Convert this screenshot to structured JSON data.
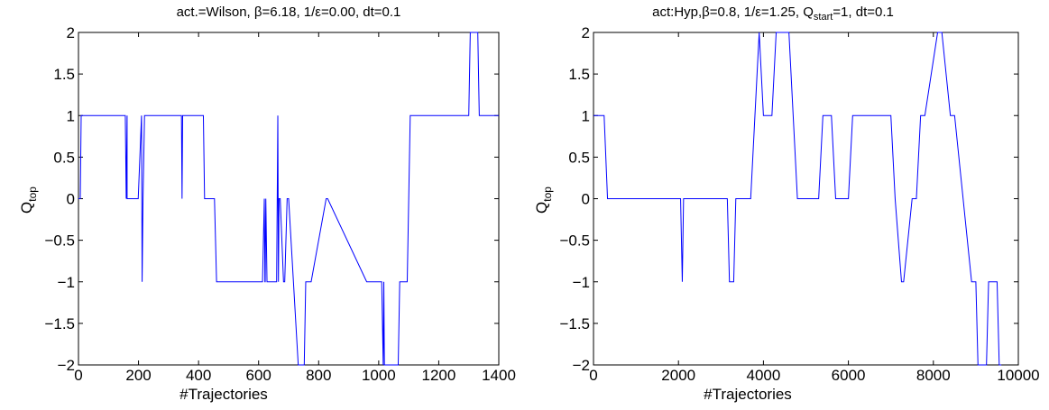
{
  "chart_data": [
    {
      "type": "line",
      "title": "act.=Wilson, β=6.18, 1/ε=0.00, dt=0.1",
      "xlabel": "#Trajectories",
      "ylabel_main": "Q",
      "ylabel_sub": "top",
      "xlim": [
        0,
        1400
      ],
      "ylim": [
        -2,
        2
      ],
      "xticks": [
        0,
        200,
        400,
        600,
        800,
        1000,
        1200,
        1400
      ],
      "xtick_labels": [
        "0",
        "200",
        "400",
        "600",
        "800",
        "1000",
        "1200",
        "1400"
      ],
      "yticks": [
        -2,
        -1.5,
        -1,
        -0.5,
        0,
        0.5,
        1,
        1.5,
        2
      ],
      "ytick_labels": [
        "−2",
        "−1.5",
        "−1",
        "−0.5",
        "0",
        "0.5",
        "1",
        "1.5",
        "2"
      ],
      "grid": false,
      "line_color": "#0000ff",
      "series": [
        {
          "x": [
            0,
            6,
            9,
            156,
            159,
            162,
            162,
            166,
            199,
            210,
            212,
            215,
            220,
            223,
            343,
            345,
            347,
            416,
            420,
            453,
            460,
            613,
            619,
            621,
            622,
            624,
            628,
            660,
            664,
            666,
            668,
            672,
            683,
            687,
            695,
            700,
            732,
            736,
            752,
            757,
            760,
            770,
            775,
            825,
            830,
            960,
            965,
            1010,
            1015,
            1017,
            1019,
            1065,
            1070,
            1095,
            1100,
            1105,
            1300,
            1305,
            1310,
            1315,
            1330,
            1335,
            1400
          ],
          "y": [
            0,
            0,
            1,
            1,
            0,
            1,
            0,
            0,
            0,
            1,
            -1,
            0,
            1,
            1,
            1,
            0,
            1,
            1,
            0,
            0,
            -1,
            -1,
            0,
            -1,
            -1,
            0,
            -1,
            -1,
            1,
            -1,
            0,
            0,
            -1,
            -1,
            0,
            0,
            -2,
            -2,
            -2,
            -1,
            -1,
            -1,
            -1,
            0,
            0,
            -1,
            -1,
            -1,
            -2,
            -1,
            -2,
            -2,
            -1,
            -1,
            0,
            1,
            1,
            2,
            2,
            2,
            2,
            1,
            1
          ]
        }
      ]
    },
    {
      "type": "line",
      "title": "act:Hyp,β=0.8, 1/ε=1.25, Q",
      "title_sub": "start",
      "title_tail": "=1, dt=0.1",
      "xlabel": "#Trajectories",
      "ylabel_main": "Q",
      "ylabel_sub": "top",
      "xlim": [
        0,
        10000
      ],
      "ylim": [
        -2,
        2
      ],
      "xticks": [
        0,
        2000,
        4000,
        6000,
        8000,
        10000
      ],
      "xtick_labels": [
        "0",
        "2000",
        "4000",
        "6000",
        "8000",
        "10000"
      ],
      "yticks": [
        -2,
        -1.5,
        -1,
        -0.5,
        0,
        0.5,
        1,
        1.5,
        2
      ],
      "ytick_labels": [
        "−2",
        "−1.5",
        "−1",
        "−0.5",
        "0",
        "0.5",
        "1",
        "1.5",
        "2"
      ],
      "grid": false,
      "line_color": "#0000ff",
      "series": [
        {
          "x": [
            0,
            250,
            330,
            2050,
            2090,
            2120,
            2150,
            3150,
            3200,
            3300,
            3350,
            3700,
            3800,
            3900,
            4000,
            4200,
            4300,
            4400,
            4600,
            4700,
            4800,
            4900,
            5300,
            5400,
            5600,
            5700,
            6000,
            6100,
            7000,
            7100,
            7250,
            7300,
            7500,
            7600,
            7700,
            7800,
            8100,
            8200,
            8400,
            8500,
            8900,
            9000,
            9050,
            9200,
            9250,
            9300,
            9350,
            9500,
            9550,
            9600
          ],
          "y": [
            1,
            1,
            0,
            0,
            -1,
            0,
            0,
            0,
            -1,
            -1,
            0,
            0,
            1,
            2,
            1,
            1,
            2,
            2,
            2,
            1,
            0,
            0,
            0,
            1,
            1,
            0,
            0,
            1,
            1,
            0,
            -1,
            -1,
            0,
            0,
            1,
            1,
            2,
            2,
            1,
            1,
            -1,
            -1,
            -2,
            -2,
            -2,
            -1,
            -1,
            -1,
            -2,
            -2
          ]
        }
      ]
    }
  ]
}
